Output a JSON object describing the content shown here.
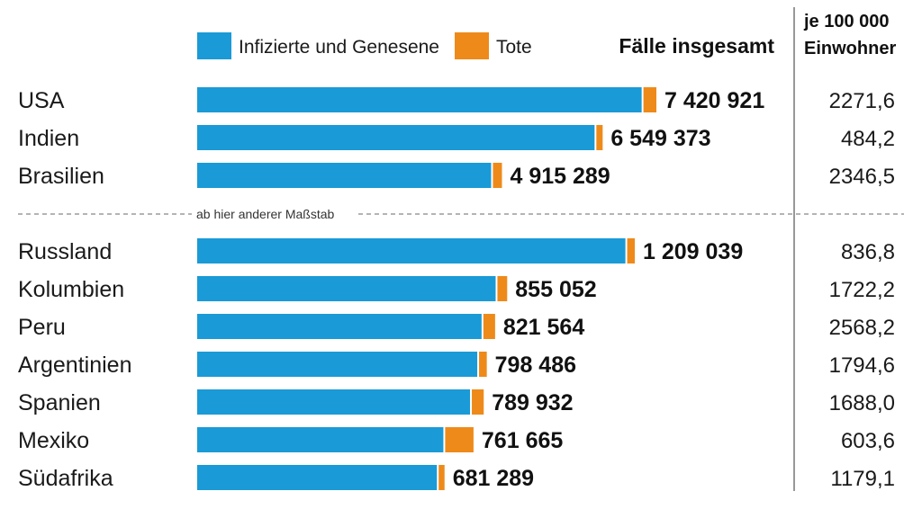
{
  "chart_data": {
    "type": "bar",
    "stacked": true,
    "orientation": "horizontal",
    "legend": {
      "placement": "top",
      "items": [
        {
          "name": "Infizierte und Genesene",
          "color": "#1a9ad6"
        },
        {
          "name": "Tote",
          "color": "#ee8a1a"
        }
      ]
    },
    "header_total": "Fälle insgesamt",
    "header_per_capita": [
      "je 100 000",
      "Einwohner"
    ],
    "scale_note": "ab hier anderer Maßstab",
    "groups": [
      {
        "rows": [
          {
            "country": "USA",
            "infected_recovered": 7211000,
            "deaths": 209921,
            "total": 7420921,
            "total_label": "7 420 921",
            "per_100k": "2271,6"
          },
          {
            "country": "Indien",
            "infected_recovered": 6447000,
            "deaths": 102373,
            "total": 6549373,
            "total_label": "6 549 373",
            "per_100k": "484,2"
          },
          {
            "country": "Brasilien",
            "infected_recovered": 4769000,
            "deaths": 146289,
            "total": 4915289,
            "total_label": "4 915 289",
            "per_100k": "2346,5"
          }
        ]
      },
      {
        "rows": [
          {
            "country": "Russland",
            "infected_recovered": 1188000,
            "deaths": 21039,
            "total": 1209039,
            "total_label": "1 209 039",
            "per_100k": "836,8"
          },
          {
            "country": "Kolumbien",
            "infected_recovered": 828000,
            "deaths": 27052,
            "total": 855052,
            "total_label": "855 052",
            "per_100k": "1722,2"
          },
          {
            "country": "Peru",
            "infected_recovered": 789000,
            "deaths": 32564,
            "total": 821564,
            "total_label": "821 564",
            "per_100k": "2568,2"
          },
          {
            "country": "Argentinien",
            "infected_recovered": 777000,
            "deaths": 21486,
            "total": 798486,
            "total_label": "798 486",
            "per_100k": "1794,6"
          },
          {
            "country": "Spanien",
            "infected_recovered": 757000,
            "deaths": 32932,
            "total": 789932,
            "total_label": "789 932",
            "per_100k": "1688,0"
          },
          {
            "country": "Mexiko",
            "infected_recovered": 683000,
            "deaths": 78665,
            "total": 761665,
            "total_label": "761 665",
            "per_100k": "603,6"
          },
          {
            "country": "Südafrika",
            "infected_recovered": 665000,
            "deaths": 16289,
            "total": 681289,
            "total_label": "681 289",
            "per_100k": "1179,1"
          }
        ]
      }
    ]
  }
}
